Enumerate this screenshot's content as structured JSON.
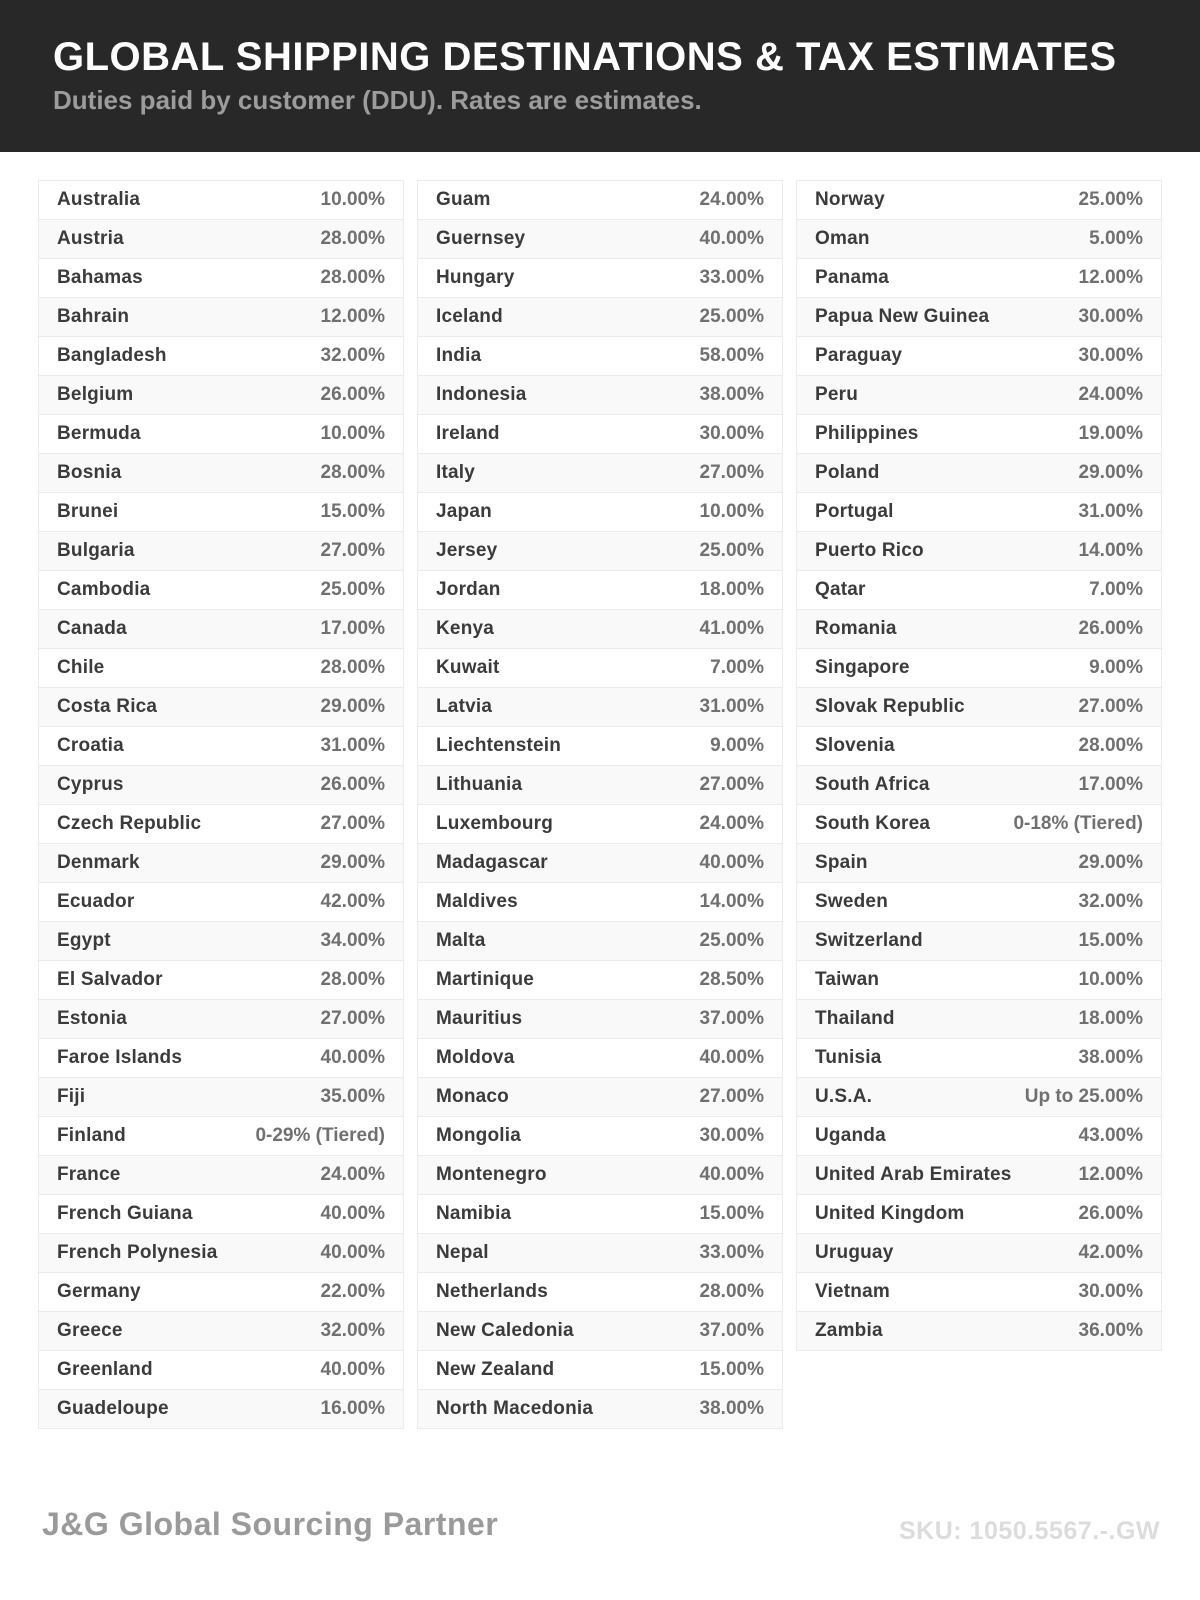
{
  "header": {
    "title": "GLOBAL SHIPPING DESTINATIONS & TAX ESTIMATES",
    "subtitle": "Duties paid by customer (DDU). Rates are estimates."
  },
  "table": {
    "columns": [
      [
        {
          "country": "Australia",
          "rate": "10.00%"
        },
        {
          "country": "Austria",
          "rate": "28.00%"
        },
        {
          "country": "Bahamas",
          "rate": "28.00%"
        },
        {
          "country": "Bahrain",
          "rate": "12.00%"
        },
        {
          "country": "Bangladesh",
          "rate": "32.00%"
        },
        {
          "country": "Belgium",
          "rate": "26.00%"
        },
        {
          "country": "Bermuda",
          "rate": "10.00%"
        },
        {
          "country": "Bosnia",
          "rate": "28.00%"
        },
        {
          "country": "Brunei",
          "rate": "15.00%"
        },
        {
          "country": "Bulgaria",
          "rate": "27.00%"
        },
        {
          "country": "Cambodia",
          "rate": "25.00%"
        },
        {
          "country": "Canada",
          "rate": "17.00%"
        },
        {
          "country": "Chile",
          "rate": "28.00%"
        },
        {
          "country": "Costa Rica",
          "rate": "29.00%"
        },
        {
          "country": "Croatia",
          "rate": "31.00%"
        },
        {
          "country": "Cyprus",
          "rate": "26.00%"
        },
        {
          "country": "Czech Republic",
          "rate": "27.00%"
        },
        {
          "country": "Denmark",
          "rate": "29.00%"
        },
        {
          "country": "Ecuador",
          "rate": "42.00%"
        },
        {
          "country": "Egypt",
          "rate": "34.00%"
        },
        {
          "country": "El Salvador",
          "rate": "28.00%"
        },
        {
          "country": "Estonia",
          "rate": "27.00%"
        },
        {
          "country": "Faroe Islands",
          "rate": "40.00%"
        },
        {
          "country": "Fiji",
          "rate": "35.00%"
        },
        {
          "country": "Finland",
          "rate": "0-29% (Tiered)"
        },
        {
          "country": "France",
          "rate": "24.00%"
        },
        {
          "country": "French Guiana",
          "rate": "40.00%"
        },
        {
          "country": "French Polynesia",
          "rate": "40.00%"
        },
        {
          "country": "Germany",
          "rate": "22.00%"
        },
        {
          "country": "Greece",
          "rate": "32.00%"
        },
        {
          "country": "Greenland",
          "rate": "40.00%"
        },
        {
          "country": "Guadeloupe",
          "rate": "16.00%"
        }
      ],
      [
        {
          "country": "Guam",
          "rate": "24.00%"
        },
        {
          "country": "Guernsey",
          "rate": "40.00%"
        },
        {
          "country": "Hungary",
          "rate": "33.00%"
        },
        {
          "country": "Iceland",
          "rate": "25.00%"
        },
        {
          "country": "India",
          "rate": "58.00%"
        },
        {
          "country": "Indonesia",
          "rate": "38.00%"
        },
        {
          "country": "Ireland",
          "rate": "30.00%"
        },
        {
          "country": "Italy",
          "rate": "27.00%"
        },
        {
          "country": "Japan",
          "rate": "10.00%"
        },
        {
          "country": "Jersey",
          "rate": "25.00%"
        },
        {
          "country": "Jordan",
          "rate": "18.00%"
        },
        {
          "country": "Kenya",
          "rate": "41.00%"
        },
        {
          "country": "Kuwait",
          "rate": "7.00%"
        },
        {
          "country": "Latvia",
          "rate": "31.00%"
        },
        {
          "country": "Liechtenstein",
          "rate": "9.00%"
        },
        {
          "country": "Lithuania",
          "rate": "27.00%"
        },
        {
          "country": "Luxembourg",
          "rate": "24.00%"
        },
        {
          "country": "Madagascar",
          "rate": "40.00%"
        },
        {
          "country": "Maldives",
          "rate": "14.00%"
        },
        {
          "country": "Malta",
          "rate": "25.00%"
        },
        {
          "country": "Martinique",
          "rate": "28.50%"
        },
        {
          "country": "Mauritius",
          "rate": "37.00%"
        },
        {
          "country": "Moldova",
          "rate": "40.00%"
        },
        {
          "country": "Monaco",
          "rate": "27.00%"
        },
        {
          "country": "Mongolia",
          "rate": "30.00%"
        },
        {
          "country": "Montenegro",
          "rate": "40.00%"
        },
        {
          "country": "Namibia",
          "rate": "15.00%"
        },
        {
          "country": "Nepal",
          "rate": "33.00%"
        },
        {
          "country": "Netherlands",
          "rate": "28.00%"
        },
        {
          "country": "New Caledonia",
          "rate": "37.00%"
        },
        {
          "country": "New Zealand",
          "rate": "15.00%"
        },
        {
          "country": "North Macedonia",
          "rate": "38.00%"
        }
      ],
      [
        {
          "country": "Norway",
          "rate": "25.00%"
        },
        {
          "country": "Oman",
          "rate": "5.00%"
        },
        {
          "country": "Panama",
          "rate": "12.00%"
        },
        {
          "country": "Papua New Guinea",
          "rate": "30.00%"
        },
        {
          "country": "Paraguay",
          "rate": "30.00%"
        },
        {
          "country": "Peru",
          "rate": "24.00%"
        },
        {
          "country": "Philippines",
          "rate": "19.00%"
        },
        {
          "country": "Poland",
          "rate": "29.00%"
        },
        {
          "country": "Portugal",
          "rate": "31.00%"
        },
        {
          "country": "Puerto Rico",
          "rate": "14.00%"
        },
        {
          "country": "Qatar",
          "rate": "7.00%"
        },
        {
          "country": "Romania",
          "rate": "26.00%"
        },
        {
          "country": "Singapore",
          "rate": "9.00%"
        },
        {
          "country": "Slovak Republic",
          "rate": "27.00%"
        },
        {
          "country": "Slovenia",
          "rate": "28.00%"
        },
        {
          "country": "South Africa",
          "rate": "17.00%"
        },
        {
          "country": "South Korea",
          "rate": "0-18% (Tiered)"
        },
        {
          "country": "Spain",
          "rate": "29.00%"
        },
        {
          "country": "Sweden",
          "rate": "32.00%"
        },
        {
          "country": "Switzerland",
          "rate": "15.00%"
        },
        {
          "country": "Taiwan",
          "rate": "10.00%"
        },
        {
          "country": "Thailand",
          "rate": "18.00%"
        },
        {
          "country": "Tunisia",
          "rate": "38.00%"
        },
        {
          "country": "U.S.A.",
          "rate": "Up to 25.00%"
        },
        {
          "country": "Uganda",
          "rate": "43.00%"
        },
        {
          "country": "United Arab Emirates",
          "rate": "12.00%"
        },
        {
          "country": "United Kingdom",
          "rate": "26.00%"
        },
        {
          "country": "Uruguay",
          "rate": "42.00%"
        },
        {
          "country": "Vietnam",
          "rate": "30.00%"
        },
        {
          "country": "Zambia",
          "rate": "36.00%"
        }
      ]
    ]
  },
  "footer": {
    "brand": "J&G Global Sourcing Partner",
    "sku": "SKU: 1050.5567.-.GW"
  },
  "colors": {
    "header-bg": "#282828",
    "title-color": "#ffffff",
    "subtitle-color": "#9c9c9c",
    "row-border": "#ebebeb",
    "row-bg": "#ffffff",
    "row-bg-alt": "#f9f9f9",
    "country-color": "#3b3b3b",
    "rate-color": "#707070",
    "brand-color": "#9a9a9a",
    "sku-color": "#dcdcdc"
  }
}
